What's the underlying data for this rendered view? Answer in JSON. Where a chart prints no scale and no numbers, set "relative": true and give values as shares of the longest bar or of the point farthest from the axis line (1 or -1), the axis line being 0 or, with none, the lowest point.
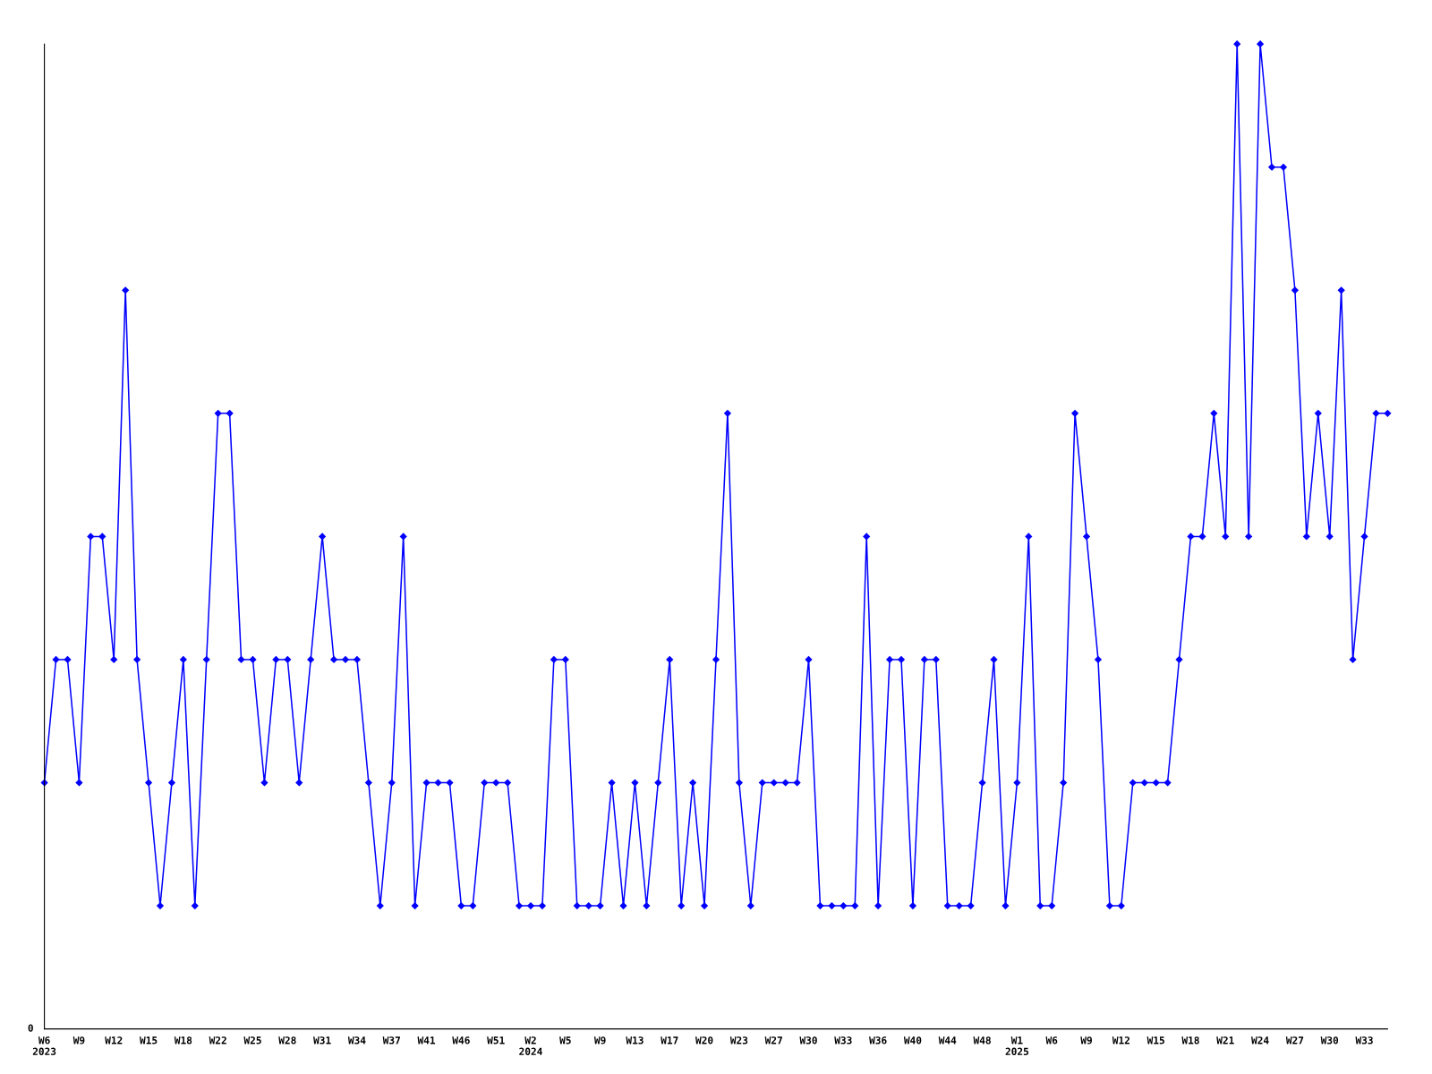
{
  "chart_data": {
    "type": "line",
    "relative": true,
    "marker": "diamond",
    "line_style": "solid",
    "grid": false,
    "legend": false,
    "annotations": [
      "0"
    ],
    "categories": [
      "W6\n2023",
      null,
      null,
      "W9",
      null,
      null,
      "W12",
      null,
      null,
      "W15",
      null,
      null,
      "W18",
      null,
      null,
      "W22",
      null,
      null,
      "W25",
      null,
      null,
      "W28",
      null,
      null,
      "W31",
      null,
      null,
      "W34",
      null,
      null,
      "W37",
      null,
      null,
      "W41",
      null,
      null,
      "W46",
      null,
      null,
      "W51",
      null,
      null,
      "W2\n2024",
      null,
      null,
      "W5",
      null,
      null,
      "W9",
      null,
      null,
      "W13",
      null,
      null,
      "W17",
      null,
      null,
      "W20",
      null,
      null,
      "W23",
      null,
      null,
      "W27",
      null,
      null,
      "W30",
      null,
      null,
      "W33",
      null,
      null,
      "W36",
      null,
      null,
      "W40",
      null,
      null,
      "W44",
      null,
      null,
      "W48",
      null,
      null,
      "W1\n2025",
      null,
      null,
      "W6",
      null,
      null,
      "W9",
      null,
      null,
      "W12",
      null,
      null,
      "W15",
      null,
      null,
      "W18",
      null,
      null,
      "W21",
      null,
      null,
      "W24",
      null,
      null,
      "W27",
      null,
      null,
      "W30",
      null,
      null,
      "W33",
      null,
      null
    ],
    "series": [
      {
        "color": "#0000ff",
        "values": [
          0.25,
          0.375,
          0.375,
          0.25,
          0.5,
          0.5,
          0.375,
          0.75,
          0.375,
          0.25,
          0.125,
          0.25,
          0.375,
          0.125,
          0.375,
          0.625,
          0.625,
          0.375,
          0.375,
          0.25,
          0.375,
          0.375,
          0.25,
          0.375,
          0.5,
          0.375,
          0.375,
          0.375,
          0.25,
          0.125,
          0.25,
          0.5,
          0.125,
          0.25,
          0.25,
          0.25,
          0.125,
          0.125,
          0.25,
          0.25,
          0.25,
          0.125,
          0.125,
          0.125,
          0.375,
          0.375,
          0.125,
          0.125,
          0.125,
          0.25,
          0.125,
          0.25,
          0.125,
          0.25,
          0.375,
          0.125,
          0.25,
          0.125,
          0.375,
          0.625,
          0.25,
          0.125,
          0.25,
          0.25,
          0.25,
          0.25,
          0.375,
          0.125,
          0.125,
          0.125,
          0.125,
          0.5,
          0.125,
          0.375,
          0.375,
          0.125,
          0.375,
          0.375,
          0.125,
          0.125,
          0.125,
          0.25,
          0.375,
          0.125,
          0.25,
          0.5,
          0.125,
          0.125,
          0.25,
          0.625,
          0.5,
          0.375,
          0.125,
          0.125,
          0.25,
          0.25,
          0.25,
          0.25,
          0.375,
          0.5,
          0.5,
          0.625,
          0.5,
          1,
          0.5,
          1,
          0.875,
          0.875,
          0.75,
          0.5,
          0.625,
          0.5,
          0.75,
          0.375,
          0.5,
          0.625,
          0.625
        ]
      }
    ]
  }
}
